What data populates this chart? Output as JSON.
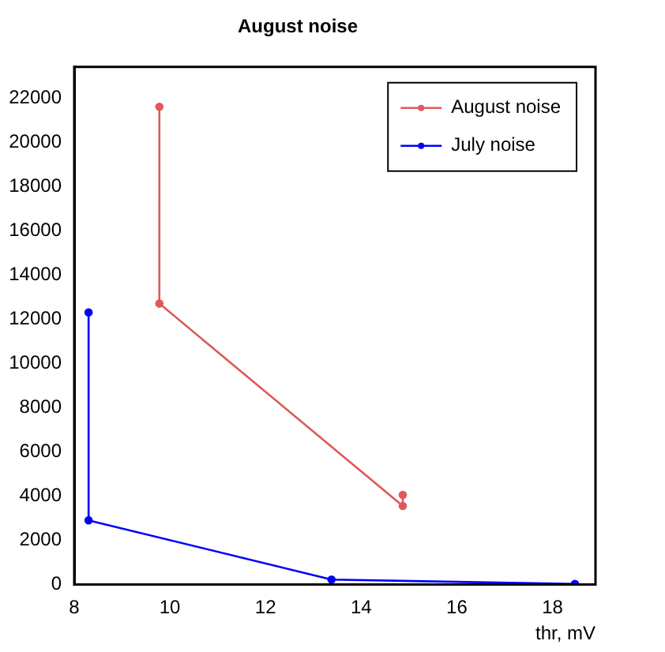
{
  "chart_data": {
    "type": "line",
    "title": "August noise",
    "xlabel": "thr, mV",
    "series": [
      {
        "name": "August noise",
        "color": "#de5a5a",
        "x": [
          9.78,
          9.78,
          14.87,
          14.87
        ],
        "values": [
          21600,
          12700,
          3550,
          4050
        ]
      },
      {
        "name": "July noise",
        "color": "#0000ff",
        "x": [
          8.3,
          8.3,
          13.38,
          18.47
        ],
        "values": [
          12300,
          2900,
          220,
          20
        ]
      }
    ],
    "xlim": [
      8,
      18.9
    ],
    "xticks": [
      8,
      10,
      12,
      14,
      16,
      18
    ],
    "ylim": [
      0,
      23400
    ],
    "yticks": [
      0,
      2000,
      4000,
      6000,
      8000,
      10000,
      12000,
      14000,
      16000,
      18000,
      20000,
      22000
    ],
    "grid": false,
    "legend": "top right",
    "marker": "circle",
    "line_style": "solid"
  }
}
